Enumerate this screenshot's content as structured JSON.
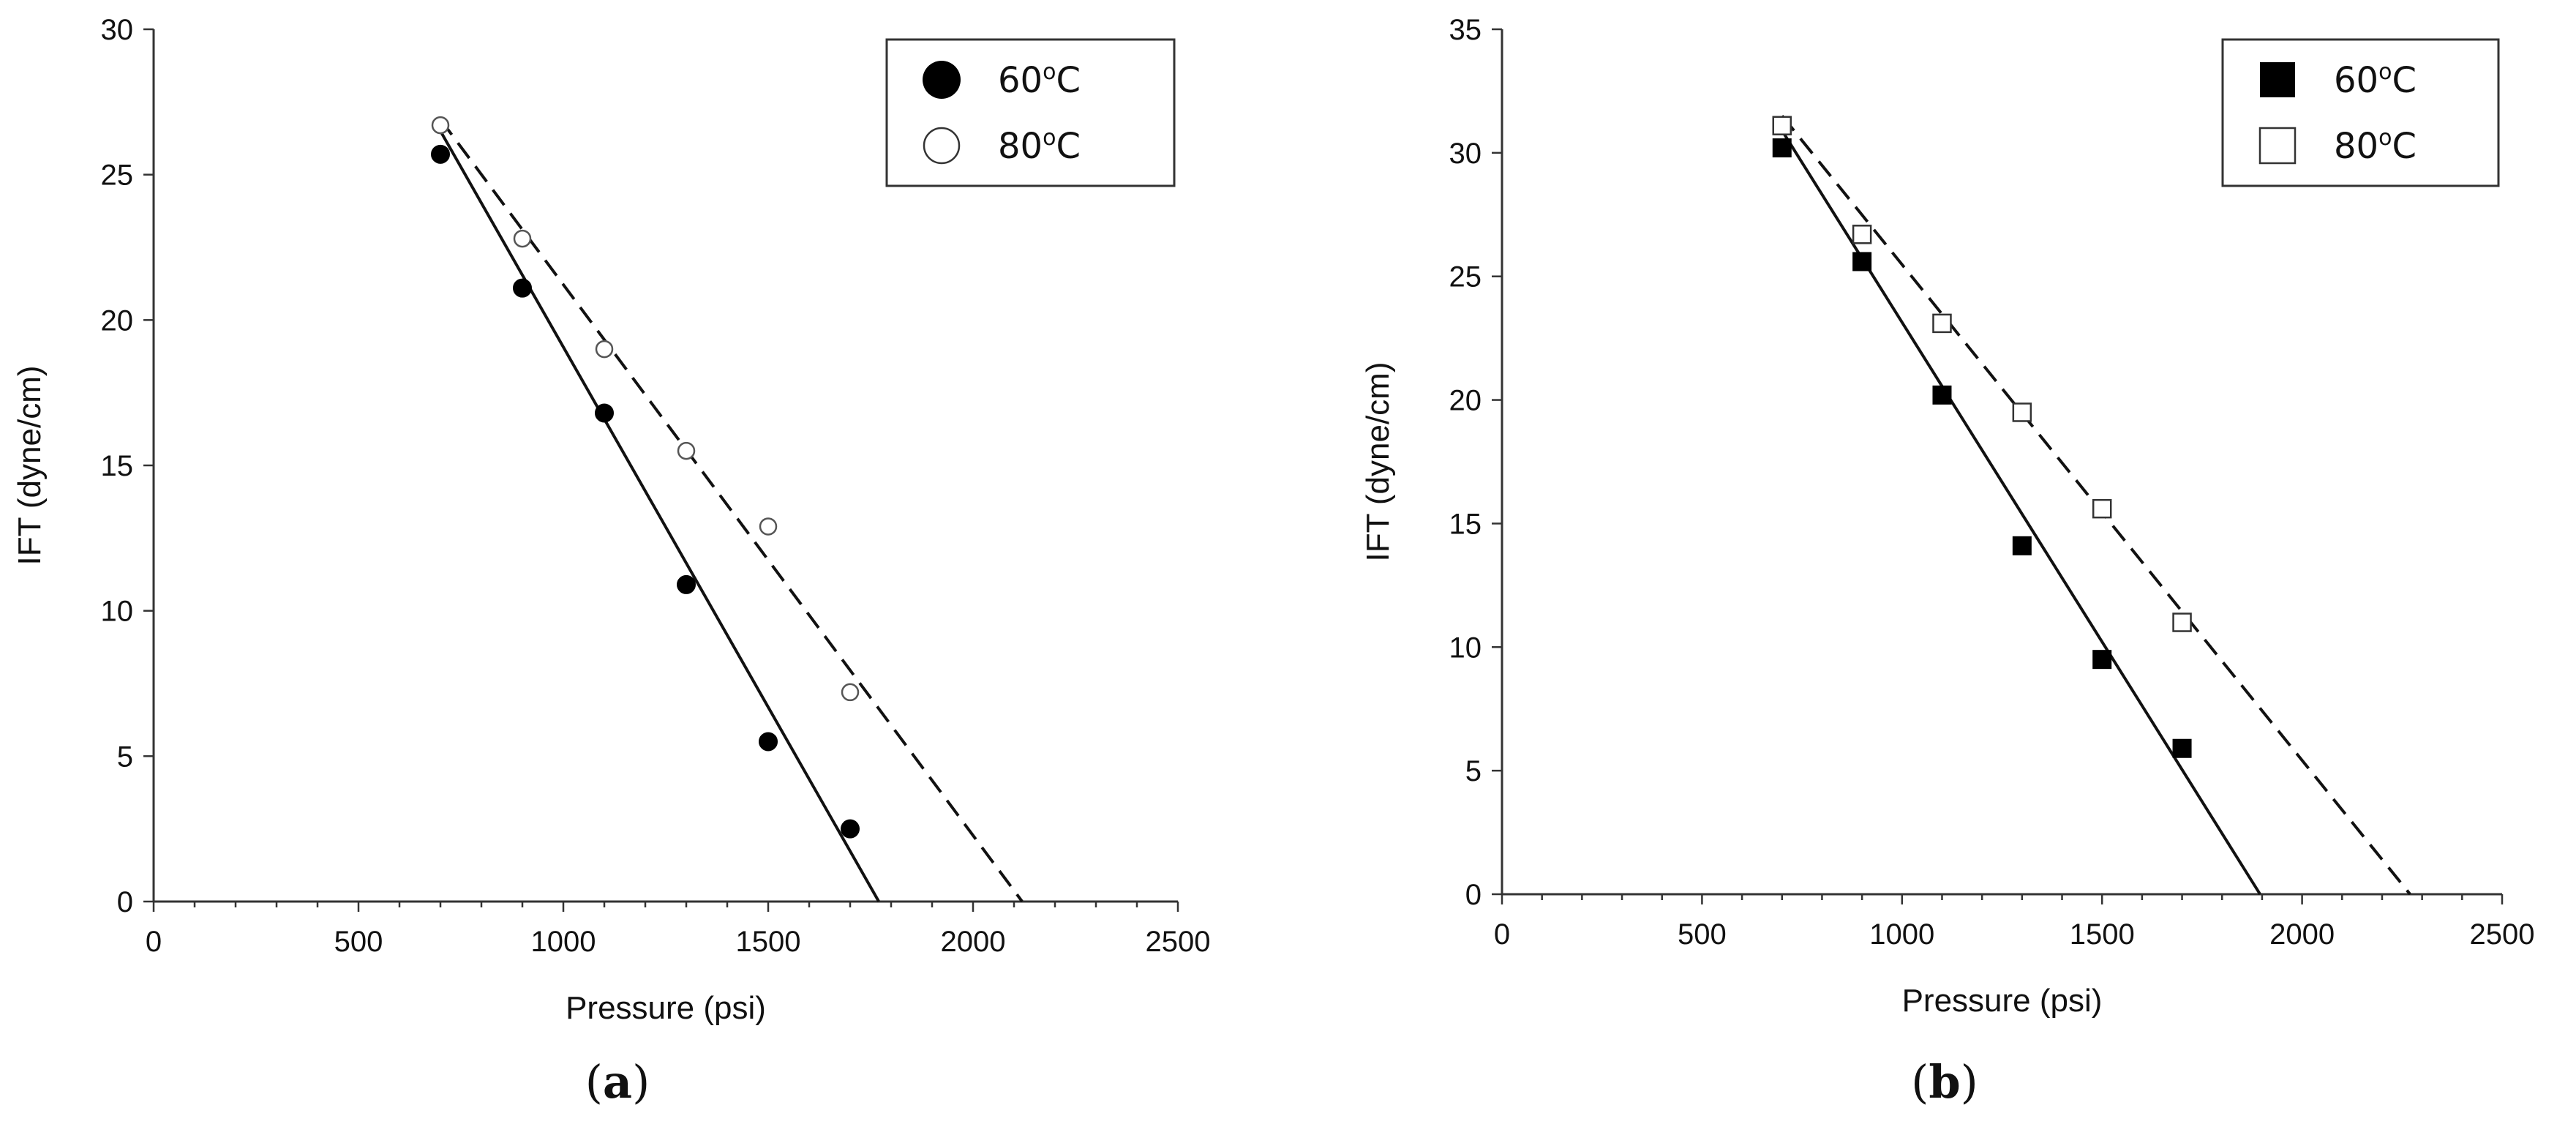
{
  "chart_data": [
    {
      "type": "scatter",
      "panel_label": "a",
      "xlabel": "Pressure (psi)",
      "ylabel": "IFT (dyne/cm)",
      "xlim": [
        0,
        2500
      ],
      "ylim": [
        0,
        30
      ],
      "x_ticks": [
        "0",
        "500",
        "1000",
        "1500",
        "2000",
        "2500"
      ],
      "y_ticks": [
        "0",
        "5",
        "10",
        "15",
        "20",
        "25",
        "30"
      ],
      "legend_position": "top-right",
      "series": [
        {
          "name": "60°C",
          "name_main": "60",
          "name_sup": "o",
          "name_unit": "C",
          "marker": "filled-circle",
          "line_style": "solid",
          "x": [
            700,
            900,
            1100,
            1300,
            1500,
            1700
          ],
          "y": [
            25.7,
            21.1,
            16.8,
            10.9,
            5.5,
            2.5
          ],
          "fit_line": {
            "x": [
              700,
              1770
            ],
            "y": [
              26.5,
              0
            ]
          }
        },
        {
          "name": "80°C",
          "name_main": "80",
          "name_sup": "o",
          "name_unit": "C",
          "marker": "open-circle",
          "line_style": "dashed",
          "x": [
            700,
            900,
            1100,
            1300,
            1500,
            1700
          ],
          "y": [
            26.7,
            22.8,
            19.0,
            15.5,
            12.9,
            7.2
          ],
          "fit_line": {
            "x": [
              700,
              2120
            ],
            "y": [
              26.9,
              0
            ]
          }
        }
      ]
    },
    {
      "type": "scatter",
      "panel_label": "b",
      "xlabel": "Pressure (psi)",
      "ylabel": "IFT (dyne/cm)",
      "xlim": [
        0,
        2500
      ],
      "ylim": [
        0,
        35
      ],
      "x_ticks": [
        "0",
        "500",
        "1000",
        "1500",
        "2000",
        "2500"
      ],
      "y_ticks": [
        "0",
        "5",
        "10",
        "15",
        "20",
        "25",
        "30",
        "35"
      ],
      "legend_position": "top-right",
      "series": [
        {
          "name": "60°C",
          "name_main": "60",
          "name_sup": "o",
          "name_unit": "C",
          "marker": "filled-square",
          "line_style": "solid",
          "x": [
            700,
            900,
            1100,
            1300,
            1500,
            1700
          ],
          "y": [
            30.2,
            25.6,
            20.2,
            14.1,
            9.5,
            5.9
          ],
          "fit_line": {
            "x": [
              700,
              1895
            ],
            "y": [
              30.9,
              0
            ]
          }
        },
        {
          "name": "80°C",
          "name_main": "80",
          "name_sup": "o",
          "name_unit": "C",
          "marker": "open-square",
          "line_style": "dashed",
          "x": [
            700,
            900,
            1100,
            1300,
            1500,
            1700
          ],
          "y": [
            31.1,
            26.7,
            23.1,
            19.5,
            15.6,
            11.0
          ],
          "fit_line": {
            "x": [
              700,
              2270
            ],
            "y": [
              31.5,
              0
            ]
          }
        }
      ]
    }
  ]
}
